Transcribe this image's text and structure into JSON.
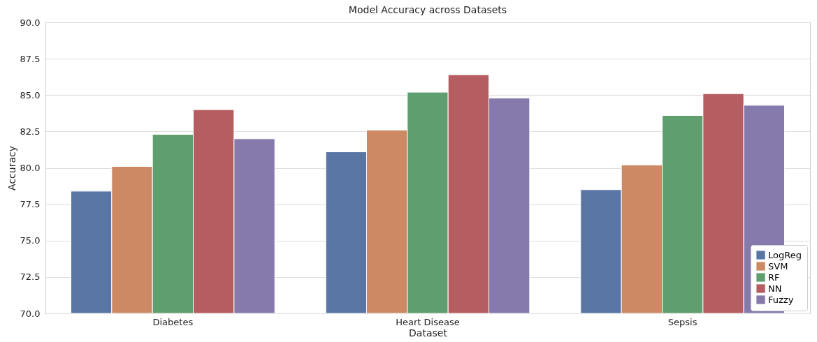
{
  "chart_data": {
    "type": "bar",
    "title": "Model Accuracy across Datasets",
    "xlabel": "Dataset",
    "ylabel": "Accuracy",
    "categories": [
      "Diabetes",
      "Heart Disease",
      "Sepsis"
    ],
    "series": [
      {
        "name": "LogReg",
        "color": "#5975a4",
        "values": [
          78.4,
          81.1,
          78.5
        ]
      },
      {
        "name": "SVM",
        "color": "#cc8963",
        "values": [
          80.1,
          82.6,
          80.2
        ]
      },
      {
        "name": "RF",
        "color": "#5f9e6e",
        "values": [
          82.3,
          85.2,
          83.6
        ]
      },
      {
        "name": "NN",
        "color": "#b55d60",
        "values": [
          84.0,
          86.4,
          85.1
        ]
      },
      {
        "name": "Fuzzy",
        "color": "#857aab",
        "values": [
          82.0,
          84.8,
          84.3
        ]
      }
    ],
    "ylim": [
      70,
      90
    ],
    "yticks": [
      {
        "value": 70,
        "label": "70.0"
      },
      {
        "value": 72.5,
        "label": "72.5"
      },
      {
        "value": 75,
        "label": "75.0"
      },
      {
        "value": 77.5,
        "label": "77.5"
      },
      {
        "value": 80,
        "label": "80.0"
      },
      {
        "value": 82.5,
        "label": "82.5"
      },
      {
        "value": 85,
        "label": "85.0"
      },
      {
        "value": 87.5,
        "label": "87.5"
      },
      {
        "value": 90,
        "label": "90.0"
      }
    ],
    "grid": "y",
    "legend": "bottom right"
  }
}
